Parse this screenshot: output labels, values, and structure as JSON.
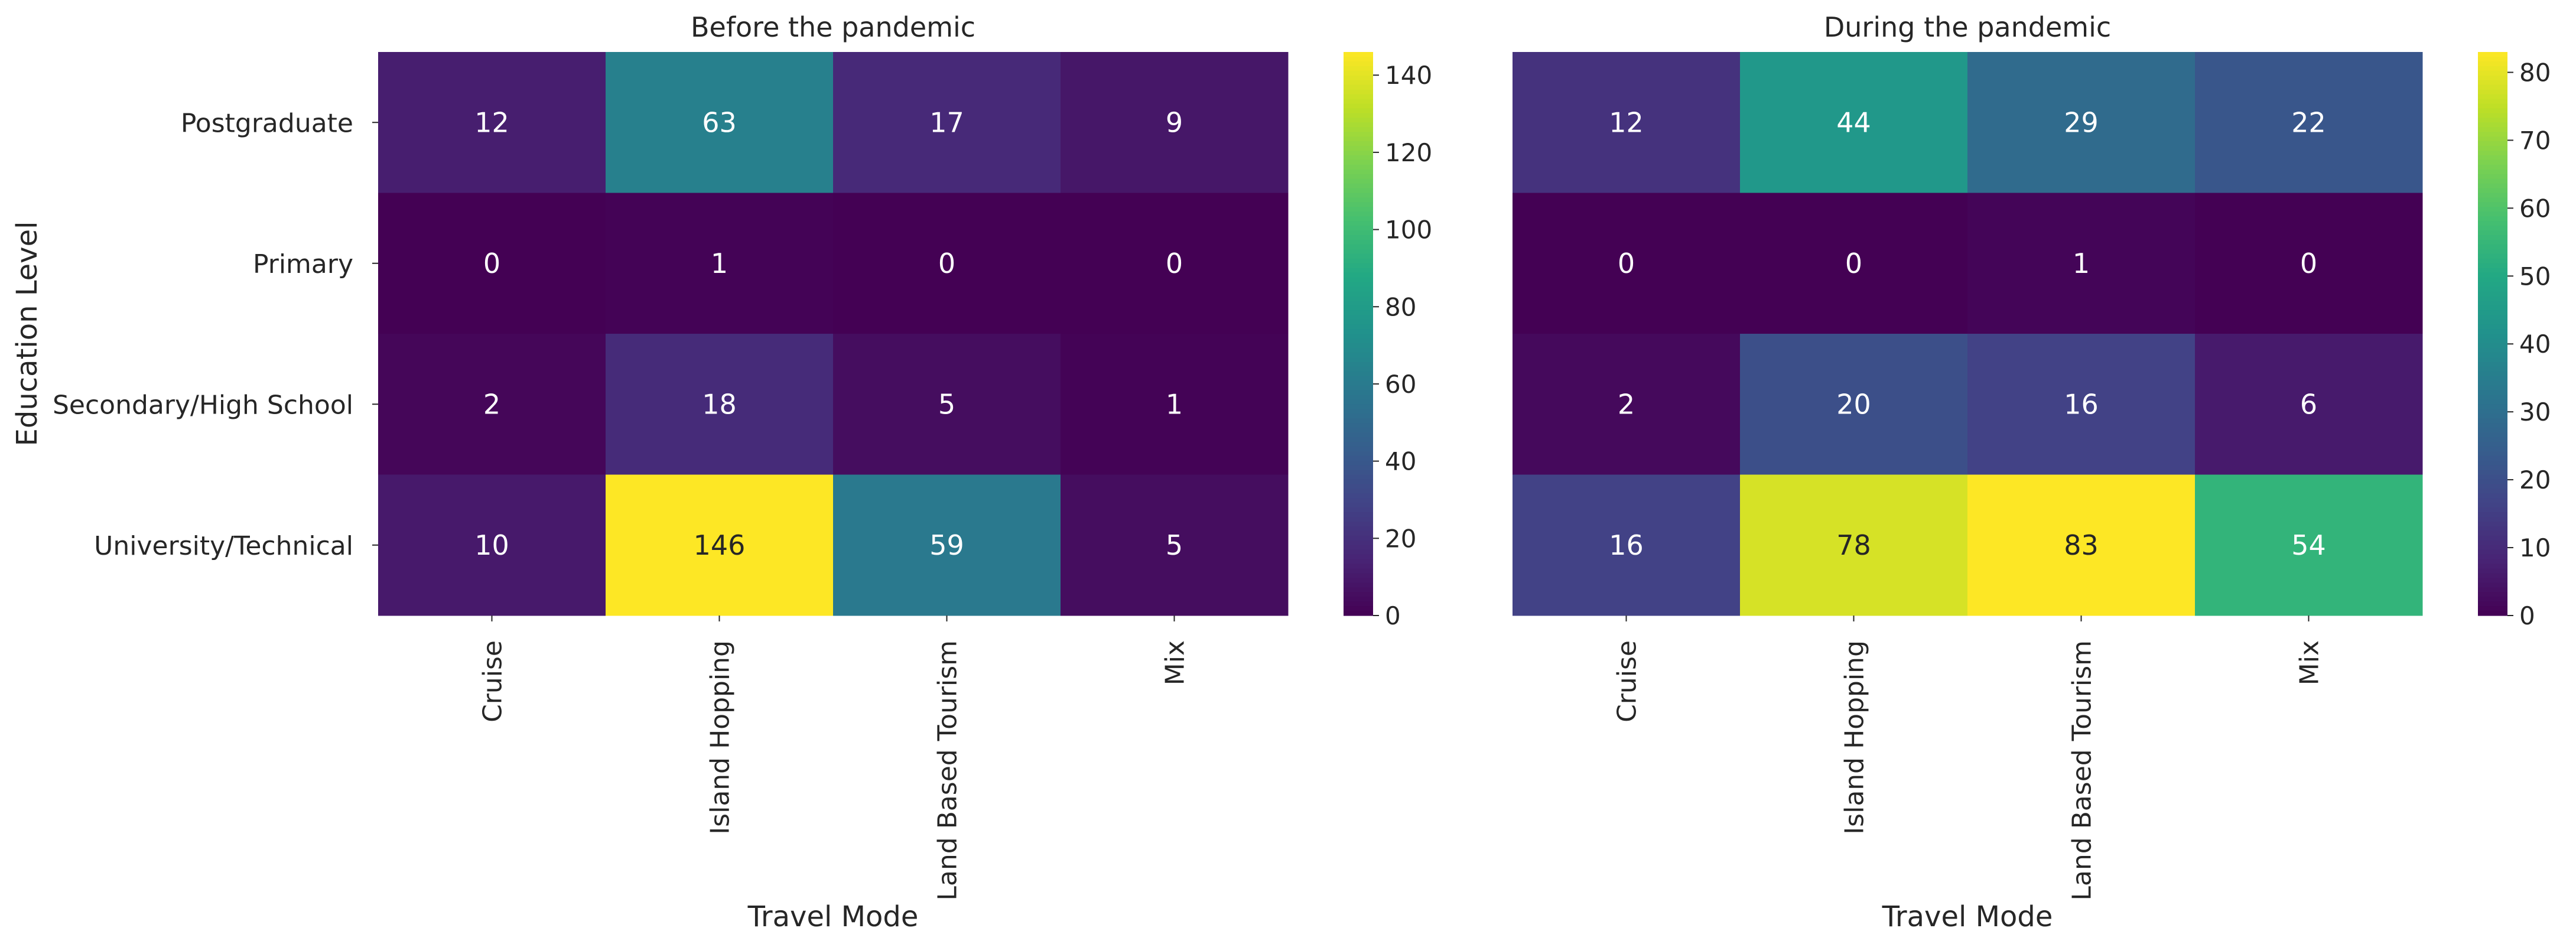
{
  "chart_data": {
    "type": "heatmap",
    "colormap": "viridis",
    "row_label": "Education Level",
    "rows": [
      "Postgraduate",
      "Primary",
      "Secondary/High School",
      "University/Technical"
    ],
    "columns": [
      "Cruise",
      "Island Hopping",
      "Land Based Tourism",
      "Mix"
    ],
    "panels": [
      {
        "title": "Before the pandemic",
        "xlabel": "Travel Mode",
        "ylabel": "Education Level",
        "values": [
          [
            12,
            63,
            17,
            9
          ],
          [
            0,
            1,
            0,
            0
          ],
          [
            2,
            18,
            5,
            1
          ],
          [
            10,
            146,
            59,
            5
          ]
        ],
        "vmin": 0,
        "vmax": 146,
        "colorbar_ticks": [
          0,
          20,
          40,
          60,
          80,
          100,
          120,
          140
        ]
      },
      {
        "title": "During the pandemic",
        "xlabel": "Travel Mode",
        "ylabel": "",
        "values": [
          [
            12,
            44,
            29,
            22
          ],
          [
            0,
            0,
            1,
            0
          ],
          [
            2,
            20,
            16,
            6
          ],
          [
            16,
            78,
            83,
            54
          ]
        ],
        "vmin": 0,
        "vmax": 83,
        "colorbar_ticks": [
          0,
          10,
          20,
          30,
          40,
          50,
          60,
          70,
          80
        ]
      }
    ]
  }
}
